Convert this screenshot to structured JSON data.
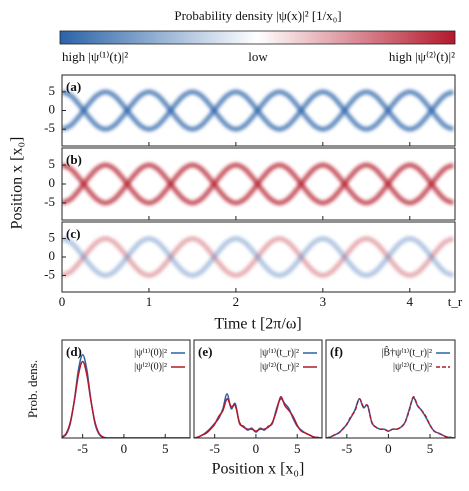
{
  "figure": {
    "colorbar": {
      "title": "Probability density |ψ(x)|² [1/x₀]",
      "left_label": "high |ψ⁽¹⁾(t)|²",
      "center_label": "low",
      "right_label": "high |ψ⁽²⁾(t)|²",
      "colors": [
        "#2b63a8",
        "#ffffff",
        "#b3182b"
      ]
    },
    "heatmap_ylabel": "Position x [x₀]",
    "heatmap_xlabel": "Time t [2π/ω]",
    "density_ylabel": "Prob. dens.",
    "density_xlabel": "Position x [x₀]"
  },
  "chart_data": [
    {
      "type": "heatmap",
      "panel_label": "(a)",
      "xlim": [
        0,
        4.52
      ],
      "ylim": [
        -9.5,
        9.5
      ],
      "xticks": [
        0,
        1,
        2,
        3,
        4,
        {
          "value": 4.52,
          "label": "t_r"
        }
      ],
      "yticks": [
        -5,
        0,
        5
      ],
      "x": [
        0,
        0.1,
        0.2,
        0.3,
        0.4,
        0.5,
        0.6,
        0.7,
        0.8,
        0.9,
        1,
        1.1,
        1.2,
        1.3,
        1.4,
        1.5,
        1.6,
        1.7,
        1.8,
        1.9,
        2,
        2.1,
        2.2,
        2.3,
        2.4,
        2.5,
        2.6,
        2.7,
        2.8,
        2.9,
        3,
        3.1,
        3.2,
        3.3,
        3.4,
        3.5,
        3.6,
        3.7,
        3.8,
        3.9,
        4,
        4.1,
        4.2,
        4.3,
        4.4,
        4.5
      ],
      "series": [
        {
          "color": "#2b63a8",
          "values": [
            -5,
            -4,
            -1.5,
            1.5,
            4,
            5,
            4,
            1.5,
            -1.5,
            -4,
            -5,
            -4,
            -1.5,
            1.5,
            4,
            5,
            4,
            1.5,
            -1.5,
            -4,
            -5,
            -4,
            -1.5,
            1.5,
            4,
            5,
            4,
            1.5,
            -1.5,
            -4,
            -5,
            -4,
            -1.5,
            1.5,
            4,
            5,
            4,
            1.5,
            -1.5,
            -4,
            -5,
            -4,
            -1.5,
            1.5,
            4,
            5
          ]
        },
        {
          "color": "#2b63a8",
          "values": [
            5,
            4,
            1.5,
            -1.5,
            -4,
            -5,
            -4,
            -1.5,
            1.5,
            4,
            5,
            4,
            1.5,
            -1.5,
            -4,
            -5,
            -4,
            -1.5,
            1.5,
            4,
            5,
            4,
            1.5,
            -1.5,
            -4,
            -5,
            -4,
            -1.5,
            1.5,
            4,
            5,
            4,
            1.5,
            -1.5,
            -4,
            -5,
            -4,
            -1.5,
            1.5,
            4,
            5,
            4,
            1.5,
            -1.5,
            -4,
            -5
          ]
        }
      ]
    },
    {
      "type": "heatmap",
      "panel_label": "(b)",
      "xlim": [
        0,
        4.52
      ],
      "ylim": [
        -9.5,
        9.5
      ],
      "xticks": [
        0,
        1,
        2,
        3,
        4,
        {
          "value": 4.52,
          "label": "t_r"
        }
      ],
      "yticks": [
        -5,
        0,
        5
      ],
      "x": [
        0,
        0.1,
        0.2,
        0.3,
        0.4,
        0.5,
        0.6,
        0.7,
        0.8,
        0.9,
        1,
        1.1,
        1.2,
        1.3,
        1.4,
        1.5,
        1.6,
        1.7,
        1.8,
        1.9,
        2,
        2.1,
        2.2,
        2.3,
        2.4,
        2.5,
        2.6,
        2.7,
        2.8,
        2.9,
        3,
        3.1,
        3.2,
        3.3,
        3.4,
        3.5,
        3.6,
        3.7,
        3.8,
        3.9,
        4,
        4.1,
        4.2,
        4.3,
        4.4,
        4.5
      ],
      "series": [
        {
          "color": "#b3182b",
          "values": [
            -5,
            -4,
            -1.5,
            1.5,
            4,
            5,
            4,
            1.5,
            -1.5,
            -4,
            -5,
            -4,
            -1.5,
            1.5,
            4,
            5,
            4,
            1.5,
            -1.5,
            -4,
            -5,
            -4,
            -1.5,
            1.5,
            4,
            5,
            4,
            1.5,
            -1.5,
            -4,
            -5,
            -4,
            -1.5,
            1.5,
            4,
            5,
            4,
            1.5,
            -1.5,
            -4,
            -5,
            -4,
            -1.5,
            1.5,
            4,
            5
          ]
        },
        {
          "color": "#b3182b",
          "values": [
            5,
            4,
            1.5,
            -1.5,
            -4,
            -5,
            -4,
            -1.5,
            1.5,
            4,
            5,
            4,
            1.5,
            -1.5,
            -4,
            -5,
            -4,
            -1.5,
            1.5,
            4,
            5,
            4,
            1.5,
            -1.5,
            -4,
            -5,
            -4,
            -1.5,
            1.5,
            4,
            5,
            4,
            1.5,
            -1.5,
            -4,
            -5,
            -4,
            -1.5,
            1.5,
            4,
            5,
            4,
            1.5,
            -1.5,
            -4,
            -5
          ]
        }
      ]
    },
    {
      "type": "heatmap",
      "panel_label": "(c)",
      "xlim": [
        0,
        4.52
      ],
      "ylim": [
        -9.5,
        9.5
      ],
      "xticks": [
        0,
        1,
        2,
        3,
        4,
        {
          "value": 4.52,
          "label": "t_r"
        }
      ],
      "yticks": [
        -5,
        0,
        5
      ],
      "x": [
        0,
        0.1,
        0.2,
        0.3,
        0.4,
        0.5,
        0.6,
        0.7,
        0.8,
        0.9,
        1,
        1.1,
        1.2,
        1.3,
        1.4,
        1.5,
        1.6,
        1.7,
        1.8,
        1.9,
        2,
        2.1,
        2.2,
        2.3,
        2.4,
        2.5,
        2.6,
        2.7,
        2.8,
        2.9,
        3,
        3.1,
        3.2,
        3.3,
        3.4,
        3.5,
        3.6,
        3.7,
        3.8,
        3.9,
        4,
        4.1,
        4.2,
        4.3,
        4.4,
        4.5
      ],
      "series": [
        {
          "color": "#c9515e",
          "values": [
            -5,
            -4,
            -1.5,
            1.5,
            4,
            5,
            4,
            1.5,
            -1.5,
            -4,
            -5,
            -4,
            -1.5,
            1.5,
            4,
            5,
            4,
            1.5,
            -1.5,
            -4,
            -5,
            -4,
            -1.5,
            1.5,
            4,
            5,
            4,
            1.5,
            -1.5,
            -4,
            -5,
            -4,
            -1.5,
            1.5,
            4,
            5,
            4,
            1.5,
            -1.5,
            -4,
            -5,
            -4,
            -1.5,
            1.5,
            4,
            5
          ]
        },
        {
          "color": "#5a86c0",
          "values": [
            5,
            4,
            1.5,
            -1.5,
            -4,
            -5,
            -4,
            -1.5,
            1.5,
            4,
            5,
            4,
            1.5,
            -1.5,
            -4,
            -5,
            -4,
            -1.5,
            1.5,
            4,
            5,
            4,
            1.5,
            -1.5,
            -4,
            -5,
            -4,
            -1.5,
            1.5,
            4,
            5,
            4,
            1.5,
            -1.5,
            -4,
            -5,
            -4,
            -1.5,
            1.5,
            4,
            5,
            4,
            1.5,
            -1.5,
            -4,
            -5
          ]
        }
      ]
    },
    {
      "type": "line",
      "panel_label": "(d)",
      "xlim": [
        -7.5,
        8
      ],
      "ylim": [
        0,
        1
      ],
      "xticks": [
        -5,
        0,
        5
      ],
      "x": [
        -7.5,
        -7,
        -6.5,
        -6,
        -5.5,
        -5,
        -4.5,
        -4,
        -3.5,
        -3,
        -2.5,
        -2,
        -1.5,
        -1,
        -0.5,
        0,
        0.5,
        1,
        1.5,
        2,
        2.5,
        3,
        3.5,
        4,
        4.5,
        5,
        5.5,
        6,
        6.5,
        7,
        7.5,
        8
      ],
      "series": [
        {
          "name": "|ψ⁽¹⁾(0)|²",
          "color": "#2b63a8",
          "dashed": false,
          "values": [
            0.008,
            0.037,
            0.146,
            0.39,
            0.7,
            0.85,
            0.7,
            0.39,
            0.146,
            0.037,
            0.007,
            0,
            0,
            0,
            0,
            0,
            0,
            0,
            0,
            0,
            0,
            0,
            0,
            0,
            0,
            0,
            0,
            0,
            0,
            0,
            0,
            0
          ]
        },
        {
          "name": "|ψ⁽²⁾(0)|²",
          "color": "#b3182b",
          "dashed": false,
          "values": [
            0.01,
            0.045,
            0.16,
            0.38,
            0.65,
            0.78,
            0.65,
            0.38,
            0.16,
            0.045,
            0.01,
            0,
            0,
            0,
            0,
            0,
            0,
            0,
            0,
            0,
            0,
            0,
            0,
            0,
            0,
            0,
            0,
            0,
            0,
            0,
            0,
            0
          ]
        }
      ]
    },
    {
      "type": "line",
      "panel_label": "(e)",
      "xlim": [
        -7.5,
        8
      ],
      "ylim": [
        0,
        1
      ],
      "xticks": [
        -5,
        0,
        5
      ],
      "x": [
        -7.5,
        -7,
        -6.5,
        -6,
        -5.5,
        -5,
        -4.5,
        -4,
        -3.5,
        -3,
        -2.5,
        -2,
        -1.5,
        -1,
        -0.5,
        0,
        0.5,
        1,
        1.5,
        2,
        2.5,
        3,
        3.5,
        4,
        4.5,
        5,
        5.5,
        6,
        6.5,
        7,
        7.5,
        8
      ],
      "series": [
        {
          "name": "|ψ⁽¹⁾(t_r)|²",
          "color": "#2b63a8",
          "dashed": false,
          "values": [
            0,
            0.01,
            0.03,
            0.06,
            0.1,
            0.15,
            0.2,
            0.3,
            0.45,
            0.3,
            0.35,
            0.15,
            0.12,
            0.08,
            0.1,
            0.06,
            0.1,
            0.08,
            0.12,
            0.15,
            0.3,
            0.4,
            0.35,
            0.3,
            0.2,
            0.12,
            0.08,
            0.05,
            0.03,
            0.01,
            0.005,
            0
          ]
        },
        {
          "name": "|ψ⁽²⁾(t_r)|²",
          "color": "#b3182b",
          "dashed": false,
          "values": [
            0,
            0.01,
            0.03,
            0.05,
            0.09,
            0.14,
            0.22,
            0.28,
            0.4,
            0.32,
            0.33,
            0.16,
            0.11,
            0.09,
            0.09,
            0.07,
            0.09,
            0.09,
            0.11,
            0.16,
            0.28,
            0.42,
            0.33,
            0.28,
            0.22,
            0.13,
            0.07,
            0.05,
            0.03,
            0.01,
            0.005,
            0
          ]
        }
      ]
    },
    {
      "type": "line",
      "panel_label": "(f)",
      "xlim": [
        -7.5,
        8
      ],
      "ylim": [
        0,
        1
      ],
      "xticks": [
        -5,
        0,
        5
      ],
      "x": [
        -7.5,
        -7,
        -6.5,
        -6,
        -5.5,
        -5,
        -4.5,
        -4,
        -3.5,
        -3,
        -2.5,
        -2,
        -1.5,
        -1,
        -0.5,
        0,
        0.5,
        1,
        1.5,
        2,
        2.5,
        3,
        3.5,
        4,
        4.5,
        5,
        5.5,
        6,
        6.5,
        7,
        7.5,
        8
      ],
      "series": [
        {
          "name": "|B̂†ψ⁽¹⁾(t_r)|²",
          "color": "#2b63a8",
          "dashed": false,
          "values": [
            0,
            0.01,
            0.03,
            0.05,
            0.09,
            0.14,
            0.21,
            0.29,
            0.4,
            0.31,
            0.33,
            0.16,
            0.11,
            0.09,
            0.09,
            0.07,
            0.09,
            0.09,
            0.11,
            0.16,
            0.29,
            0.41,
            0.33,
            0.28,
            0.21,
            0.13,
            0.07,
            0.05,
            0.03,
            0.01,
            0.005,
            0
          ]
        },
        {
          "name": "|ψ⁽²⁾(t_r)|²",
          "color": "#b3182b",
          "dashed": true,
          "values": [
            0,
            0.01,
            0.03,
            0.05,
            0.09,
            0.14,
            0.22,
            0.28,
            0.4,
            0.32,
            0.33,
            0.16,
            0.11,
            0.09,
            0.09,
            0.07,
            0.09,
            0.09,
            0.11,
            0.16,
            0.28,
            0.42,
            0.33,
            0.28,
            0.22,
            0.13,
            0.07,
            0.05,
            0.03,
            0.01,
            0.005,
            0
          ]
        }
      ]
    }
  ]
}
